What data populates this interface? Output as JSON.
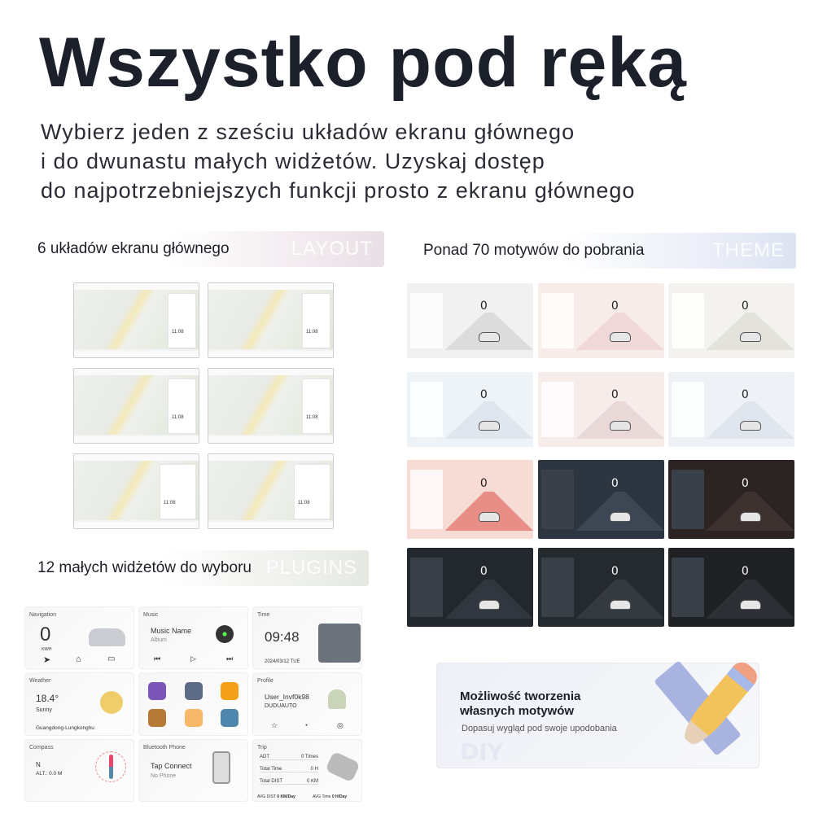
{
  "header": {
    "title": "Wszystko pod ręką",
    "subtitle_lines": [
      "Wybierz jeden z sześciu układów ekranu głównego",
      "i do dwunastu małych widżetów. Uzyskaj dostęp",
      "do najpotrzebniejszych funkcji prosto z ekranu głównego"
    ]
  },
  "layouts": {
    "label": "6 układów ekranu głównego",
    "tag": "LAYOUT",
    "count": 6,
    "clock": "11:08"
  },
  "themes": {
    "label": "Ponad 70 motywów do pobrania",
    "tag": "THEME",
    "speed": "0",
    "palettes": [
      [
        "#f1f1f1",
        "#dcdcdc"
      ],
      [
        "#f7ece9",
        "#f0d8d8"
      ],
      [
        "#f3f2ee",
        "#e3e3dc"
      ],
      [
        "#eef3f8",
        "#dfe6ee"
      ],
      [
        "#f6ecea",
        "#e9d8d8"
      ],
      [
        "#eef2f6",
        "#dfe6ed"
      ],
      [
        "#f6dcd4",
        "#e88e86"
      ],
      [
        "#2c3540",
        "#3c4753"
      ],
      [
        "#2b2422",
        "#3d3230"
      ],
      [
        "#23272e",
        "#32373f"
      ],
      [
        "#252a2f",
        "#343a40"
      ],
      [
        "#1f2124",
        "#2d3034"
      ]
    ]
  },
  "plugins": {
    "label": "12 małych widżetów do wyboru",
    "tag": "PLUGINS",
    "navigation": {
      "title": "Navigation",
      "speed": "0",
      "unit": "KM/H"
    },
    "music": {
      "title": "Music",
      "name": "Music Name",
      "album": "Album"
    },
    "time": {
      "title": "Time",
      "clock": "09:48",
      "date": "2024/03/12 TUE"
    },
    "weather": {
      "title": "Weather",
      "temp": "18.4°",
      "cond": "Sunny",
      "location": "Guangdong-Lungkonghu"
    },
    "apps": {
      "colors": [
        "#7c55b8",
        "#5d6b86",
        "#f5a019",
        "#b57a35",
        "#f7b86a",
        "#4e86ad"
      ]
    },
    "profile": {
      "title": "Profile",
      "user": "User_Invf0k98",
      "brand": "DUDUAUTO"
    },
    "compass": {
      "title": "Compass",
      "dir": "N",
      "alt": "ALT.: 0.0 M"
    },
    "bluetooth": {
      "title": "Bluetooth Phone",
      "action": "Tap Connect",
      "status": "No Phone"
    },
    "trip": {
      "title": "Trip",
      "rows": [
        [
          "ADT",
          "0 Times"
        ],
        [
          "Total Time",
          "0 H"
        ],
        [
          "Total DIST",
          "0 KM"
        ]
      ],
      "avg_dist_label": "AVG DIST",
      "avg_dist": "0 KM/Day",
      "avg_time_label": "AVG Time",
      "avg_time": "0 H/Day"
    }
  },
  "diy": {
    "watermark": "DIY",
    "title_lines": [
      "Możliwość tworzenia",
      "własnych motywów"
    ],
    "subtitle": "Dopasuj wygląd pod swoje upodobania"
  }
}
